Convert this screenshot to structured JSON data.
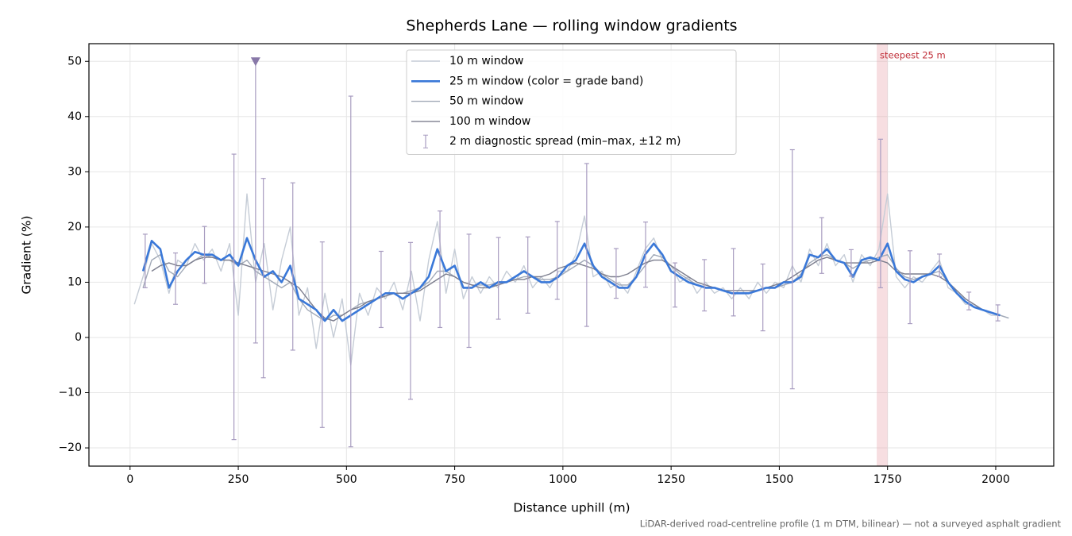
{
  "chart_data": {
    "type": "line",
    "title": "Shepherds Lane — rolling window gradients",
    "xlabel": "Distance uphill (m)",
    "ylabel": "Gradient (%)",
    "footnote": "LiDAR-derived road-centreline profile (1 m DTM, bilinear) — not a surveyed asphalt gradient",
    "xlim": [
      -95,
      2134
    ],
    "ylim": [
      -23.3,
      53.2
    ],
    "xticks": [
      0,
      250,
      500,
      750,
      1000,
      1250,
      1500,
      1750,
      2000
    ],
    "yticks": [
      {
        "value": -20,
        "label": "−20"
      },
      {
        "value": -10,
        "label": "−10"
      },
      0,
      10,
      20,
      30,
      40,
      50
    ],
    "grid": true,
    "legend": "upper center",
    "x": [
      10,
      30,
      50,
      70,
      90,
      110,
      130,
      150,
      170,
      190,
      210,
      230,
      250,
      270,
      290,
      310,
      330,
      350,
      370,
      390,
      410,
      430,
      450,
      470,
      490,
      510,
      530,
      550,
      570,
      590,
      610,
      630,
      650,
      670,
      690,
      710,
      730,
      750,
      770,
      790,
      810,
      830,
      850,
      870,
      890,
      910,
      930,
      950,
      970,
      990,
      1010,
      1030,
      1050,
      1070,
      1090,
      1110,
      1130,
      1150,
      1170,
      1190,
      1210,
      1230,
      1250,
      1270,
      1290,
      1310,
      1330,
      1350,
      1370,
      1390,
      1410,
      1430,
      1450,
      1470,
      1490,
      1510,
      1530,
      1550,
      1570,
      1590,
      1610,
      1630,
      1650,
      1670,
      1690,
      1710,
      1730,
      1750,
      1770,
      1790,
      1810,
      1830,
      1850,
      1870,
      1890,
      1910,
      1930,
      1950,
      1970,
      1990,
      2010,
      2030
    ],
    "series": [
      {
        "name": "10 m window",
        "color": "#c5ccd6",
        "width": 1.4,
        "values": [
          6,
          11,
          17,
          14,
          8,
          14,
          13,
          17,
          14,
          16,
          12,
          17,
          4,
          26,
          10,
          17,
          5,
          14,
          20,
          4,
          9,
          -2,
          8,
          0,
          7,
          -5,
          8,
          4,
          9,
          7,
          10,
          5,
          12,
          3,
          14,
          21,
          8,
          16,
          7,
          11,
          8,
          11,
          9,
          12,
          10,
          13,
          9,
          11,
          9,
          12,
          12,
          15,
          22,
          11,
          12,
          9,
          10,
          8,
          12,
          16,
          18,
          14,
          13,
          10,
          11,
          8,
          10,
          8,
          9,
          7,
          9,
          7,
          10,
          8,
          10,
          9,
          13,
          10,
          16,
          13,
          17,
          13,
          15,
          10,
          15,
          13,
          16,
          26,
          11,
          9,
          11,
          10,
          12,
          14,
          9,
          8,
          6,
          6,
          5,
          4,
          4,
          3.5
        ]
      },
      {
        "name": "50 m window",
        "color": "#a2aab8",
        "width": 1.4,
        "values": [
          null,
          9,
          14,
          15,
          12,
          11,
          13,
          14,
          15,
          14.5,
          14,
          14,
          13,
          14,
          12,
          11,
          10,
          9,
          10,
          7,
          5,
          4,
          3,
          4,
          4,
          5,
          6,
          6.5,
          7,
          7.5,
          8,
          8,
          8.5,
          9,
          10,
          12,
          12,
          11,
          10,
          9.5,
          9.5,
          9.5,
          10,
          10,
          10.5,
          11,
          11,
          10.5,
          10.5,
          11,
          12,
          13,
          14,
          13,
          11.5,
          10.5,
          9.5,
          9.5,
          11,
          13,
          15,
          14.5,
          13,
          11.5,
          10.5,
          9.5,
          9,
          9,
          8.5,
          8,
          8,
          8,
          8.5,
          9,
          9,
          9.5,
          10,
          11.5,
          13.5,
          14.5,
          15,
          14,
          13.5,
          12.5,
          13.5,
          14,
          14.5,
          15,
          12.5,
          11,
          10.5,
          11,
          11.5,
          12,
          10,
          8.5,
          7,
          6,
          5,
          4.5,
          4,
          3.5
        ]
      },
      {
        "name": "100 m window",
        "color": "#7c7e8e",
        "width": 1.4,
        "values": [
          null,
          null,
          12,
          13,
          13.5,
          13,
          13,
          14,
          14.5,
          14.5,
          14,
          14,
          13.5,
          13,
          12.5,
          12,
          11.5,
          11,
          10,
          9,
          7,
          5,
          3.5,
          3,
          4,
          5,
          5.5,
          6.5,
          7,
          7.5,
          8,
          8,
          8,
          8.5,
          9.5,
          10.5,
          11.5,
          11,
          10,
          9.5,
          9,
          9,
          9.5,
          10,
          10.5,
          10.5,
          11,
          11,
          11.5,
          12.5,
          13,
          13.5,
          13,
          12.5,
          11.5,
          11,
          11,
          11.5,
          12.5,
          13.5,
          14,
          14,
          13,
          12,
          11,
          10,
          9.5,
          9,
          8.5,
          8.5,
          8.5,
          8.5,
          8.5,
          9,
          9.5,
          10,
          11,
          12,
          13,
          14,
          14.5,
          14,
          13.5,
          13.5,
          13.5,
          13.5,
          14,
          13.5,
          12,
          11.5,
          11.5,
          11.5,
          11.5,
          11,
          10,
          8.5,
          7,
          6,
          5,
          4.5,
          4,
          null
        ]
      },
      {
        "name": "25 m window (color = grade band)",
        "color": "#3a78d8",
        "width": 2.6,
        "values": [
          null,
          12,
          17.5,
          16,
          9,
          12,
          14,
          15.5,
          15,
          15,
          14,
          15,
          13,
          18,
          14,
          11,
          12,
          10,
          13,
          7,
          6,
          5,
          3,
          5,
          3,
          4,
          5,
          6,
          7,
          8,
          8,
          7,
          8,
          9,
          11,
          16,
          12,
          13,
          9,
          9,
          10,
          9,
          10,
          10,
          11,
          12,
          11,
          10,
          10,
          11,
          13,
          14,
          17,
          13,
          11,
          10,
          9,
          9,
          11,
          15,
          17,
          15,
          12,
          11,
          10,
          9.5,
          9,
          9,
          8.5,
          8,
          8,
          8,
          8.5,
          9,
          9,
          10,
          10,
          11,
          15,
          14.5,
          16,
          14,
          13.5,
          11,
          14,
          14.5,
          14,
          17,
          12,
          10.5,
          10,
          11,
          11.5,
          13,
          10,
          8,
          6.5,
          5.5,
          5,
          4.5,
          4,
          null
        ]
      }
    ],
    "errorbars": {
      "name": "2 m diagnostic spread (min–max, ±12 m)",
      "color": "#a89cc0",
      "x": [
        35,
        105,
        172,
        240,
        290,
        308,
        376,
        444,
        510,
        580,
        648,
        716,
        783,
        851,
        919,
        987,
        1055,
        1123,
        1191,
        1259,
        1327,
        1394,
        1462,
        1530,
        1598,
        1666,
        1734,
        1802,
        1870,
        1938,
        2005
      ],
      "low": [
        9,
        6,
        9.8,
        -18.5,
        -1,
        -7.3,
        -2.3,
        -16.3,
        -19.8,
        1.8,
        -11.2,
        1.8,
        -1.8,
        3.3,
        4.4,
        6.9,
        2,
        7.1,
        9.1,
        5.5,
        4.8,
        3.9,
        1.2,
        -9.3,
        11.6,
        11.1,
        9,
        2.5,
        11,
        5,
        3
      ],
      "high": [
        18.7,
        15.3,
        20.1,
        33.2,
        50,
        28.8,
        28,
        17.3,
        43.7,
        15.6,
        17.2,
        22.9,
        18.7,
        18.1,
        18.2,
        21,
        31.5,
        16.1,
        20.9,
        13.5,
        14.1,
        16.1,
        13.3,
        34,
        21.7,
        15.9,
        35.9,
        15.7,
        15.1,
        8.2,
        5.9
      ]
    },
    "clip_marker": {
      "x": 290,
      "value": 50,
      "color": "#8878a8"
    },
    "highlight": {
      "span": [
        1725,
        1750
      ],
      "label": "steepest 25 m",
      "color": "#e8a0a8",
      "text_color": "#c0303a"
    }
  }
}
